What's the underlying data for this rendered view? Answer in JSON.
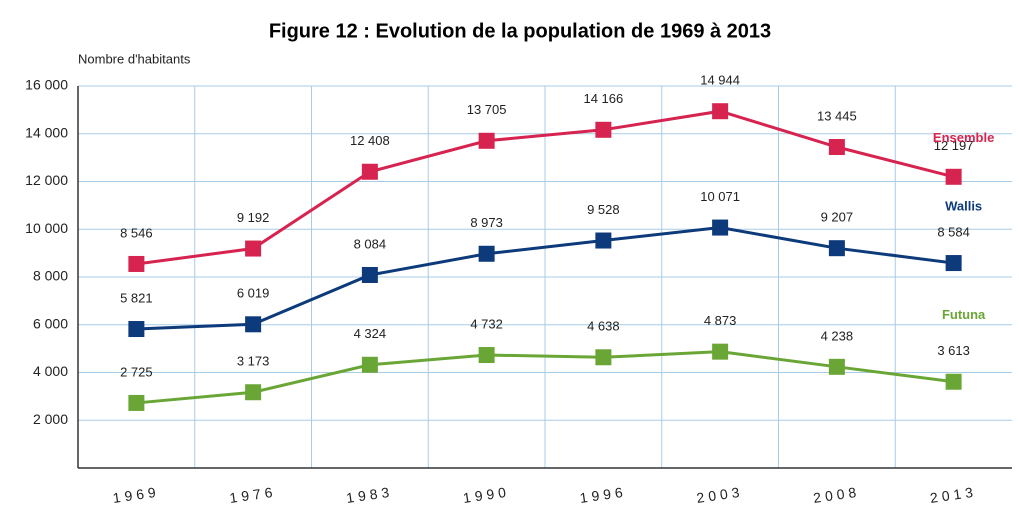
{
  "chart_data": {
    "type": "line",
    "title": "Figure 12 : Evolution de la population de 1969 à 2013",
    "y_label": "Nombre d'habitants",
    "categories": [
      "1969",
      "1976",
      "1983",
      "1990",
      "1996",
      "2003",
      "2008",
      "2013"
    ],
    "series": [
      {
        "name": "Ensemble",
        "color": "#d6234f",
        "values": [
          8546,
          9192,
          12408,
          13705,
          14166,
          14944,
          13445,
          12197
        ],
        "value_labels": [
          "8 546",
          "9 192",
          "12 408",
          "13 705",
          "14 166",
          "14 944",
          "13 445",
          "12 197"
        ]
      },
      {
        "name": "Wallis",
        "color": "#0d3a7a",
        "values": [
          5821,
          6019,
          8084,
          8973,
          9528,
          10071,
          9207,
          8584
        ],
        "value_labels": [
          "5 821",
          "6 019",
          "8 084",
          "8 973",
          "9 528",
          "10 071",
          "9 207",
          "8 584"
        ]
      },
      {
        "name": "Futuna",
        "color": "#6aa636",
        "values": [
          2725,
          3173,
          4324,
          4732,
          4638,
          4873,
          4238,
          3613
        ],
        "value_labels": [
          "2 725",
          "3 173",
          "4 324",
          "4 732",
          "4 638",
          "4 873",
          "4 238",
          "3 613"
        ]
      }
    ],
    "ylim": [
      0,
      16000
    ],
    "yticks": [
      {
        "value": 2000,
        "label": "2 000"
      },
      {
        "value": 4000,
        "label": "4 000"
      },
      {
        "value": 6000,
        "label": "6 000"
      },
      {
        "value": 8000,
        "label": "8 000"
      },
      {
        "value": 10000,
        "label": "10 000"
      },
      {
        "value": 12000,
        "label": "12 000"
      },
      {
        "value": 14000,
        "label": "14 000"
      },
      {
        "value": 16000,
        "label": "16 000"
      }
    ],
    "grid": true
  }
}
